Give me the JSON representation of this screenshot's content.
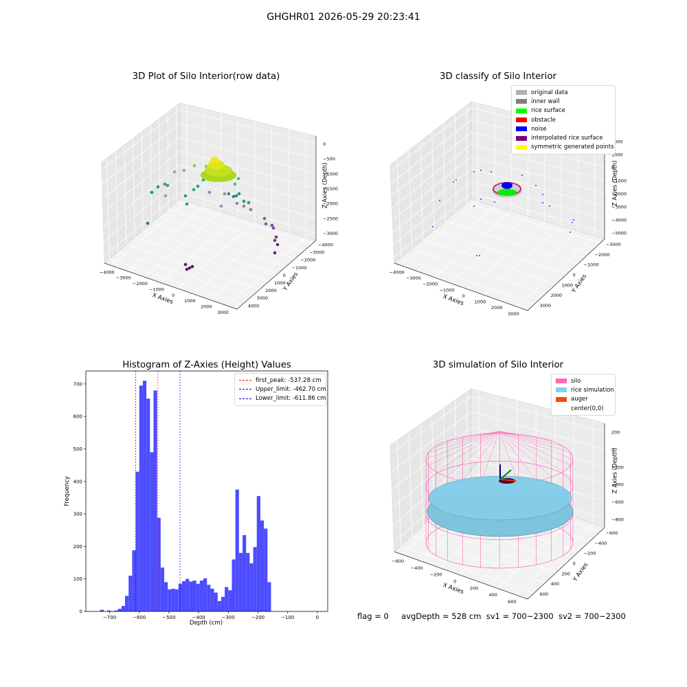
{
  "suptitle": "GHGHR01 2026-05-29 20:23:41",
  "status": {
    "flag": "flag = 0",
    "avg": "avgDepth = 528 cm",
    "sv1": "sv1 = 700~2300",
    "sv2": "sv2 = 700~2300"
  },
  "chart_data": [
    {
      "type": "scatter",
      "title": "3D Plot of Silo Interior(row data)",
      "xlabel": "X Axies",
      "ylabel": "Y Axies",
      "zlabel": "Z Axies (Depth)",
      "xticks": [
        "−4000",
        "−3000",
        "−2000",
        "−1000",
        "0",
        "1000",
        "2000",
        "3000"
      ],
      "yticks": [
        "−4000",
        "−3000",
        "−2000",
        "−1000",
        "0",
        "1000",
        "2000",
        "3000",
        "4000"
      ],
      "zticks": [
        "0",
        "−500",
        "−1000",
        "−1500",
        "−2000",
        "−2500",
        "−3000"
      ],
      "grid": true
    },
    {
      "type": "scatter",
      "title": "3D classify of Silo Interior",
      "xlabel": "X Axies",
      "ylabel": "Y Axies",
      "zlabel": "Z Axies (Depth)",
      "xticks": [
        "−4000",
        "−3000",
        "−2000",
        "−1000",
        "0",
        "1000",
        "2000",
        "3000"
      ],
      "yticks": [
        "−3000",
        "−2000",
        "−1000",
        "0",
        "1000",
        "2000",
        "3000"
      ],
      "zticks": [
        "2000",
        "1000",
        "0",
        "−1000",
        "−2000",
        "−3000",
        "−4000",
        "−5000"
      ],
      "legend": [
        {
          "name": "original data",
          "color": "#b0b0b0"
        },
        {
          "name": "inner wall",
          "color": "#808080"
        },
        {
          "name": "rice surface",
          "color": "#00ff00"
        },
        {
          "name": "obstacle",
          "color": "#ff0000"
        },
        {
          "name": "noise",
          "color": "#0000ff"
        },
        {
          "name": "interpolated rice surface",
          "color": "#800080"
        },
        {
          "name": "symmetric generated points",
          "color": "#ffff00"
        }
      ],
      "legend_position": "top-right",
      "grid": true
    },
    {
      "type": "bar",
      "title": "Histogram of Z-Axies (Height) Values",
      "xlabel": "Depth (cm)",
      "ylabel": "Frequency",
      "xlim": [
        -780,
        35
      ],
      "ylim": [
        0,
        740
      ],
      "xticks": [
        -700,
        -600,
        -500,
        -400,
        -300,
        -200,
        -100,
        0
      ],
      "xtick_labels": [
        "−700",
        "−600",
        "−500",
        "−400",
        "−300",
        "−200",
        "−100",
        "0"
      ],
      "yticks": [
        0,
        100,
        200,
        300,
        400,
        500,
        600,
        700
      ],
      "bar_color": "#4d4dff",
      "bin_start": -732,
      "bin_width": 12,
      "values": [
        5,
        0,
        3,
        1,
        3,
        8,
        17,
        48,
        110,
        188,
        430,
        695,
        710,
        655,
        490,
        680,
        288,
        135,
        90,
        68,
        70,
        68,
        85,
        93,
        100,
        92,
        95,
        85,
        95,
        102,
        82,
        70,
        58,
        32,
        45,
        75,
        65,
        160,
        375,
        180,
        235,
        180,
        148,
        198,
        355,
        280,
        255,
        90
      ],
      "vlines": [
        {
          "name": "first_peak: -537.28 cm",
          "x": -537.28,
          "color": "#ff0000"
        },
        {
          "name": "Upper_limit: -462.70 cm",
          "x": -462.7,
          "color": "#0000cc"
        },
        {
          "name": "Lower_limit: -611.86 cm",
          "x": -611.86,
          "color": "#0000cc"
        }
      ],
      "legend_position": "top-right"
    },
    {
      "type": "scatter",
      "title": "3D simulation of Silo Interior",
      "xlabel": "X Axies",
      "ylabel": "Y Axies",
      "zlabel": "Z Axies (Depth)",
      "xticks": [
        "−600",
        "−400",
        "−200",
        "0",
        "200",
        "400",
        "600"
      ],
      "yticks": [
        "−600",
        "−400",
        "−200",
        "0",
        "200",
        "400",
        "600"
      ],
      "zticks": [
        "200",
        "0",
        "−200",
        "−400",
        "−600",
        "−800"
      ],
      "legend": [
        {
          "name": "silo",
          "color": "#ff69b4"
        },
        {
          "name": "rice simulation",
          "color": "#87ceeb"
        },
        {
          "name": "auger",
          "color": "#ff4500"
        },
        {
          "name": "center(0,0)",
          "color": "transparent"
        }
      ],
      "legend_position": "top-right",
      "grid": true
    }
  ]
}
